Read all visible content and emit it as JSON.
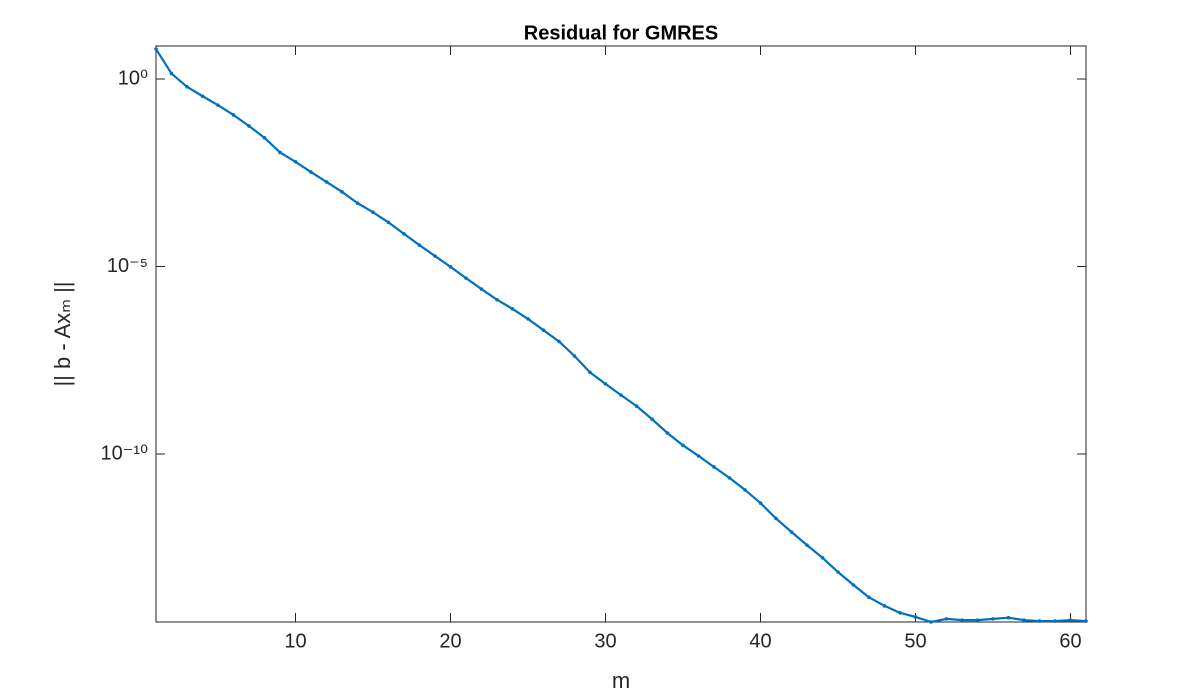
{
  "chart_data": {
    "type": "line",
    "title": "Residual for GMRES",
    "x_label": "m",
    "y_label": "|| b - Axₘ ||",
    "y_scale": "log",
    "x": [
      1,
      2,
      3,
      4,
      5,
      6,
      7,
      8,
      9,
      10,
      11,
      12,
      13,
      14,
      15,
      16,
      17,
      18,
      19,
      20,
      21,
      22,
      23,
      24,
      25,
      26,
      27,
      28,
      29,
      30,
      31,
      32,
      33,
      34,
      35,
      36,
      37,
      38,
      39,
      40,
      41,
      42,
      43,
      44,
      45,
      46,
      47,
      48,
      49,
      50,
      51,
      52,
      53,
      54,
      55,
      56,
      57,
      58,
      59,
      60,
      61
    ],
    "series": [
      {
        "color": "#0072bd",
        "values": [
          6.3,
          1.4,
          0.62,
          0.35,
          0.2,
          0.11,
          0.056,
          0.027,
          0.011,
          0.0062,
          0.0033,
          0.0018,
          0.00098,
          0.00049,
          0.00028,
          0.00015,
          7.4e-05,
          3.7e-05,
          1.9e-05,
          9.8e-06,
          4.9e-06,
          2.5e-06,
          1.3e-06,
          7.4e-07,
          4e-07,
          2e-07,
          1e-07,
          4.1e-08,
          1.5e-08,
          7.4e-09,
          3.7e-09,
          1.9e-09,
          8.5e-10,
          3.6e-10,
          1.7e-10,
          8.9e-11,
          4.5e-11,
          2.3e-11,
          1.1e-11,
          4.9e-12,
          1.9e-12,
          8.3e-13,
          3.7e-13,
          1.7e-13,
          7.1e-14,
          3.2e-14,
          1.5e-14,
          8.9e-15,
          5.8e-15,
          4.5e-15,
          3.3e-15,
          4e-15,
          3.7e-15,
          3.7e-15,
          4e-15,
          4.3e-15,
          3.7e-15,
          3.5e-15,
          3.5e-15,
          3.7e-15,
          3.5e-15
        ]
      }
    ],
    "xlim": [
      1,
      61
    ],
    "xticks": [
      10,
      20,
      30,
      40,
      50,
      60
    ],
    "ylim": [
      3.3e-15,
      7.6
    ],
    "yticks": [
      {
        "value": 1,
        "label": "10⁰"
      },
      {
        "value": 1e-05,
        "label": "10⁻⁵"
      },
      {
        "value": 1e-10,
        "label": "10⁻¹⁰"
      }
    ]
  }
}
